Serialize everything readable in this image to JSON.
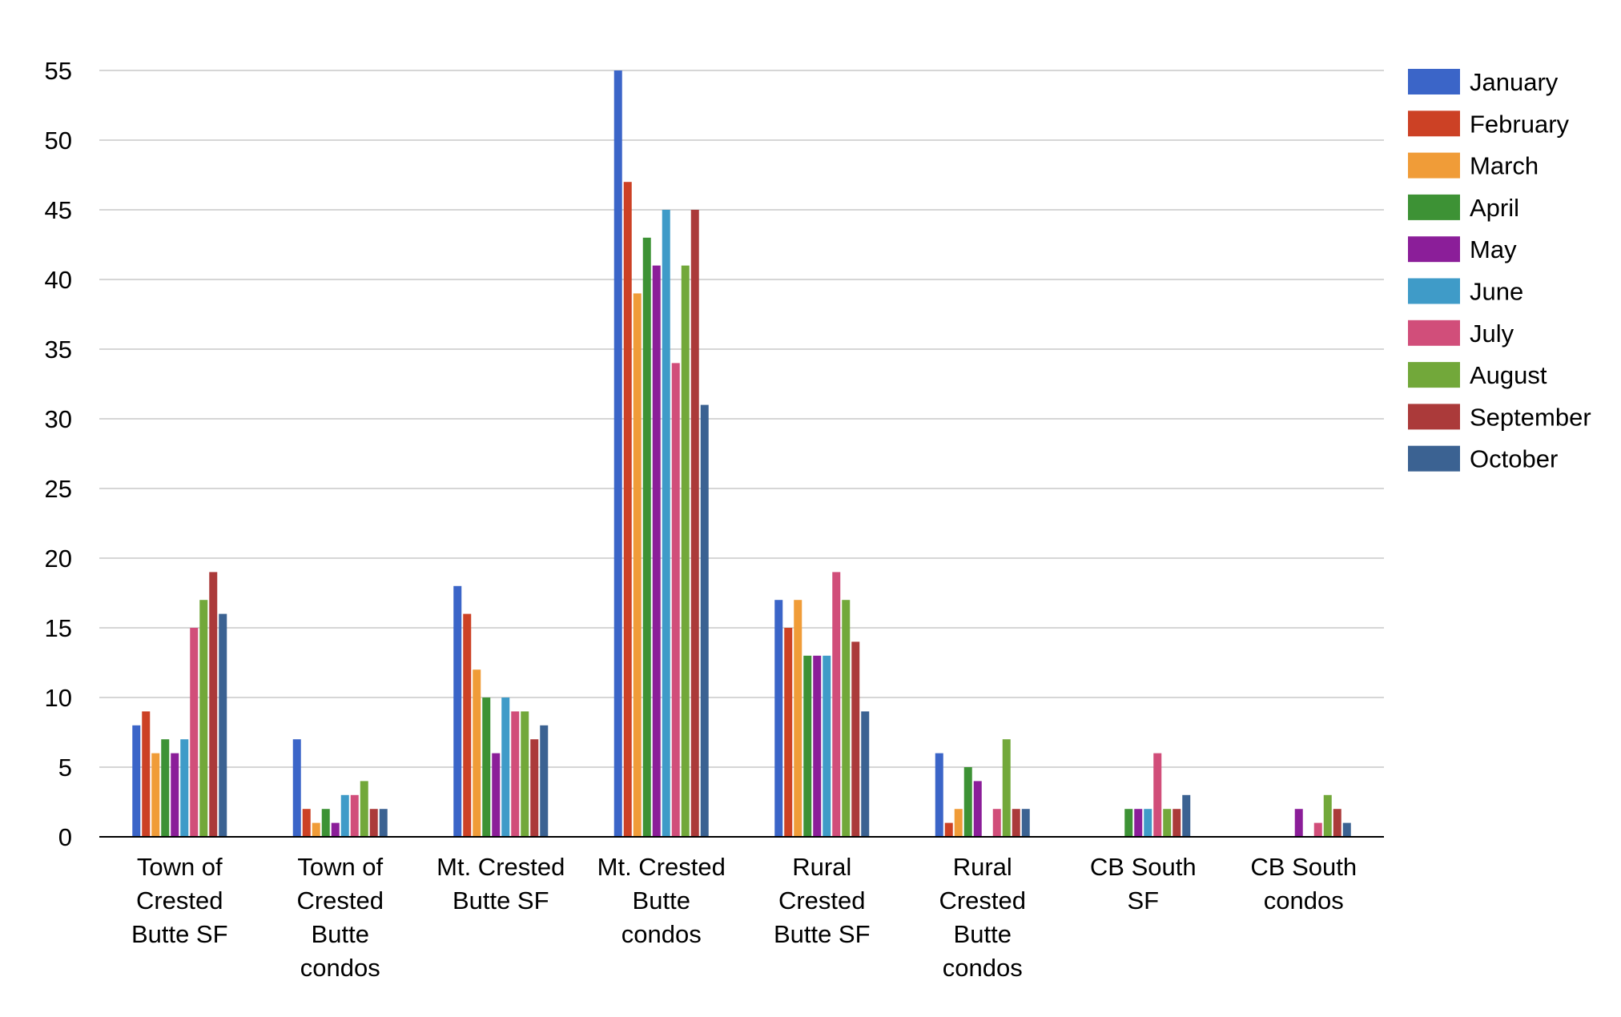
{
  "chart_data": {
    "type": "bar",
    "title": "",
    "xlabel": "",
    "ylabel": "",
    "ylim": [
      0,
      55
    ],
    "yticks": [
      0,
      5,
      10,
      15,
      20,
      25,
      30,
      35,
      40,
      45,
      50,
      55
    ],
    "grid": true,
    "legend_position": "right",
    "categories": [
      [
        "Town of",
        "Crested",
        "Butte SF"
      ],
      [
        "Town of",
        "Crested",
        "Butte",
        "condos"
      ],
      [
        "Mt. Crested",
        "Butte SF"
      ],
      [
        "Mt. Crested",
        "Butte",
        "condos"
      ],
      [
        "Rural",
        "Crested",
        "Butte SF"
      ],
      [
        "Rural",
        "Crested",
        "Butte",
        "condos"
      ],
      [
        "CB South",
        "SF"
      ],
      [
        "CB South",
        "condos"
      ]
    ],
    "series": [
      {
        "name": "January",
        "color": "#3b65c8",
        "values": [
          8,
          7,
          18,
          55,
          17,
          6,
          0,
          0
        ]
      },
      {
        "name": "February",
        "color": "#cc4125",
        "values": [
          9,
          2,
          16,
          47,
          15,
          1,
          0,
          0
        ]
      },
      {
        "name": "March",
        "color": "#f09c38",
        "values": [
          6,
          1,
          12,
          39,
          17,
          2,
          0,
          0
        ]
      },
      {
        "name": "April",
        "color": "#3d9235",
        "values": [
          7,
          2,
          10,
          43,
          13,
          5,
          2,
          0
        ]
      },
      {
        "name": "May",
        "color": "#8b1e99",
        "values": [
          6,
          1,
          6,
          41,
          13,
          4,
          2,
          2
        ]
      },
      {
        "name": "June",
        "color": "#3f9bc8",
        "values": [
          7,
          3,
          10,
          45,
          13,
          0,
          2,
          0
        ]
      },
      {
        "name": "July",
        "color": "#d14e7a",
        "values": [
          15,
          3,
          9,
          34,
          19,
          2,
          6,
          1
        ]
      },
      {
        "name": "August",
        "color": "#72a83a",
        "values": [
          17,
          4,
          9,
          41,
          17,
          7,
          2,
          3
        ]
      },
      {
        "name": "September",
        "color": "#ab3a3a",
        "values": [
          19,
          2,
          7,
          45,
          14,
          2,
          2,
          2
        ]
      },
      {
        "name": "October",
        "color": "#3b6292",
        "values": [
          16,
          2,
          8,
          31,
          9,
          2,
          3,
          1
        ]
      }
    ]
  }
}
